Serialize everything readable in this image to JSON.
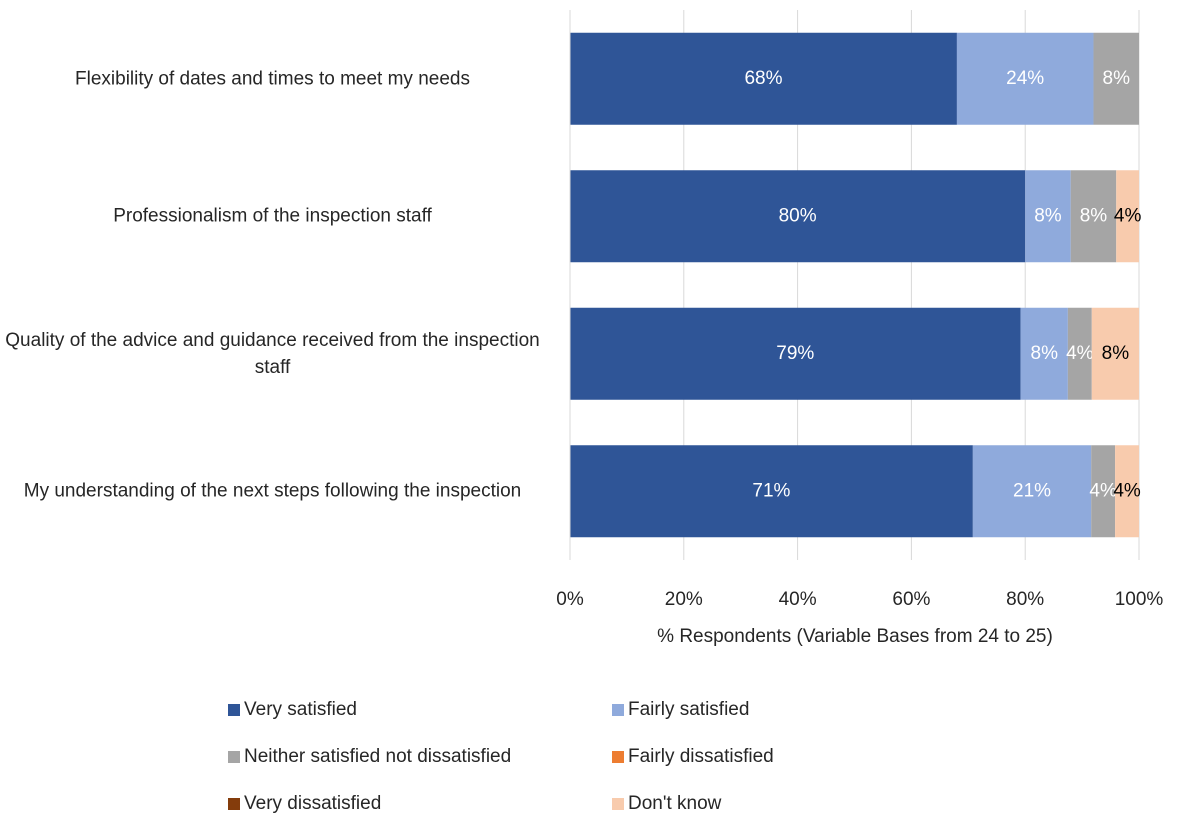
{
  "chart_data": {
    "type": "stacked_bar_horizontal",
    "categories": [
      "Flexibility of dates and times to meet my needs",
      "Professionalism of the inspection staff",
      "Quality of the advice and guidance received from the inspection staff",
      "My understanding of the next steps following the inspection"
    ],
    "series": [
      {
        "name": "Very satisfied",
        "color": "#2f5597",
        "label_color": "#ffffff",
        "values": [
          68,
          80,
          79.2,
          70.8
        ],
        "value_labels": [
          "68%",
          "80%",
          "79%",
          "71%"
        ]
      },
      {
        "name": "Fairly satisfied",
        "color": "#8faadc",
        "label_color": "#ffffff",
        "values": [
          24,
          8,
          8.3,
          20.8
        ],
        "value_labels": [
          "24%",
          "8%",
          "8%",
          "21%"
        ]
      },
      {
        "name": "Neither satisfied not dissatisfied",
        "color": "#a5a5a5",
        "label_color": "#ffffff",
        "values": [
          8,
          8,
          4.2,
          4.2
        ],
        "value_labels": [
          "8%",
          "8%",
          "4%",
          "4%"
        ]
      },
      {
        "name": "Fairly dissatisfied",
        "color": "#ed7d31",
        "values": [
          0,
          0,
          0,
          0
        ]
      },
      {
        "name": "Very dissatisfied",
        "color": "#843c0c",
        "values": [
          0,
          0,
          0,
          0
        ]
      },
      {
        "name": "Don't know",
        "color": "#f8cbad",
        "label_color": "#000000",
        "values": [
          0,
          4,
          8.3,
          4.2
        ],
        "value_labels": [
          null,
          "4%",
          "8%",
          "4%"
        ]
      }
    ],
    "xlim": [
      0,
      100
    ],
    "xticks": [
      {
        "value": 0,
        "label": "0%"
      },
      {
        "value": 20,
        "label": "20%"
      },
      {
        "value": 40,
        "label": "40%"
      },
      {
        "value": 60,
        "label": "60%"
      },
      {
        "value": 80,
        "label": "80%"
      },
      {
        "value": 100,
        "label": "100%"
      }
    ],
    "xlabel": "% Respondents (Variable Bases from 24 to 25)",
    "grid": true,
    "legend": "bottom"
  }
}
